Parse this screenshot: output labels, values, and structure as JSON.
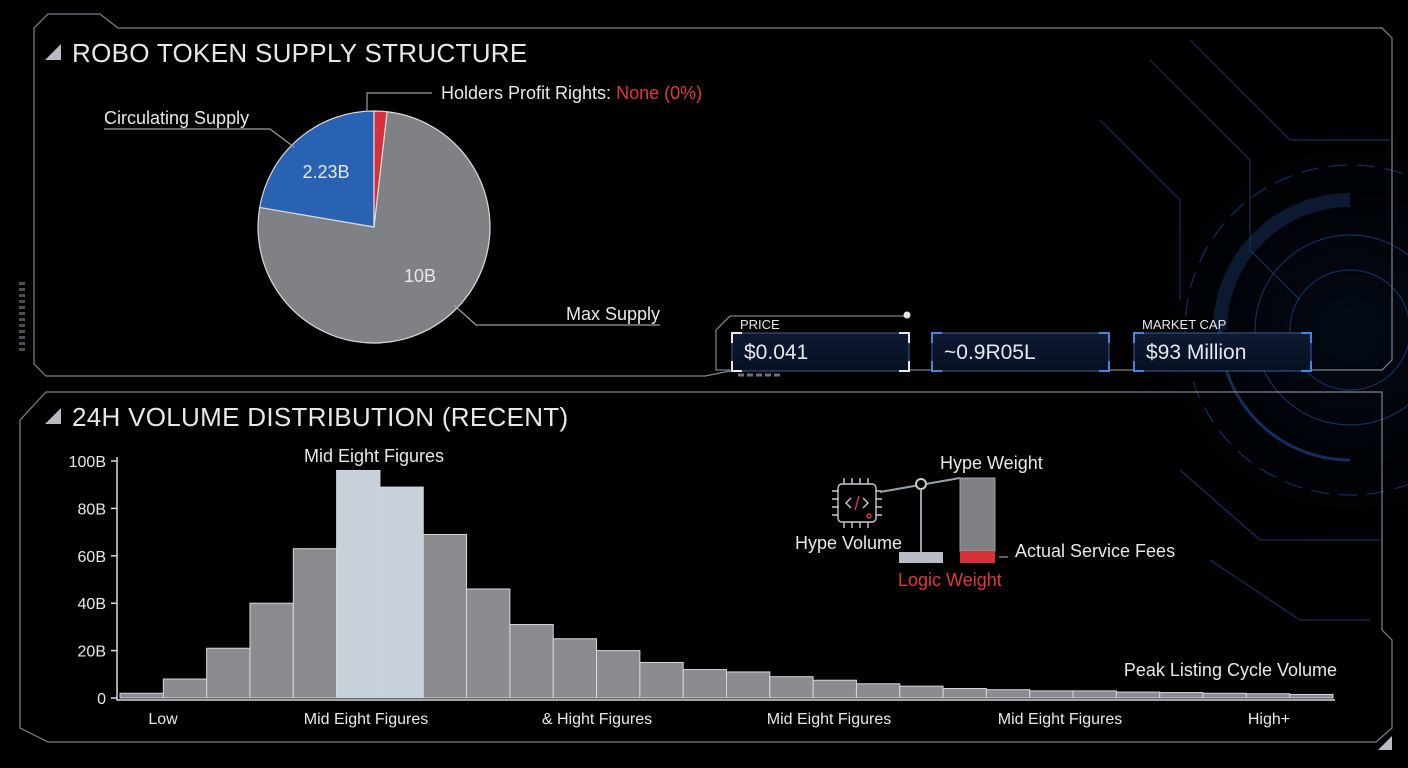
{
  "colors": {
    "background": "#000000",
    "panel_stroke": "#7d838c",
    "gray_slice": "#808184",
    "blue_slice": "#2a62b3",
    "red_slice": "#d6313a",
    "bar_gray": "#8a8c90",
    "bar_highlight": "#c8d0da",
    "accent_red": "#e0393a",
    "cyber_blue": "#1d3f7a"
  },
  "supply_panel": {
    "title": "ROBO TOKEN SUPPLY STRUCTURE",
    "circulating_label": "Circulating Supply",
    "max_label": "Max Supply",
    "holders_label": "Holders Profit Rights:",
    "holders_value": "None (0%)"
  },
  "stats": {
    "price_label": "PRICE",
    "price_value": "$0.041",
    "middle_value": "~0.9R05L",
    "market_cap_label": "MARKET CAP",
    "market_cap_value": "$93 Million"
  },
  "volume_panel": {
    "title": "24H VOLUME DISTRIBUTION (RECENT)",
    "peak_annotation": "Mid Eight Figures",
    "tail_annotation": "Peak Listing Cycle Volume"
  },
  "scale_graphic": {
    "hype_weight": "Hype Weight",
    "hype_volume": "Hype Volume",
    "logic_weight": "Logic Weight",
    "actual_fees": "Actual Service Fees",
    "chip_icon": "chip-icon"
  },
  "chart_data": [
    {
      "type": "pie",
      "slices": [
        {
          "label": "10B",
          "value": 7.59,
          "color": "#808184"
        },
        {
          "label": "2.23B",
          "value": 2.23,
          "color": "#2a62b3"
        },
        {
          "label": "",
          "value": 0.18,
          "color": "#d6313a"
        }
      ]
    },
    {
      "type": "bar",
      "title": "24H VOLUME DISTRIBUTION (RECENT)",
      "ylim": [
        0,
        100
      ],
      "y_ticks": [
        "0",
        "20B",
        "40B",
        "60B",
        "80B",
        "100B"
      ],
      "x_tick_labels": [
        "Low",
        "Mid Eight Figures",
        "& Hight Figures",
        "Mid Eight Figures",
        "Mid Eight Figures",
        "High+"
      ],
      "values": [
        2,
        8,
        21,
        40,
        63,
        96,
        89,
        69,
        46,
        31,
        25,
        20,
        15,
        12,
        11,
        9,
        7.5,
        6,
        5,
        4,
        3.5,
        3,
        3,
        2.5,
        2.3,
        2,
        1.8,
        1.5
      ],
      "highlighted": [
        5,
        6
      ]
    }
  ]
}
